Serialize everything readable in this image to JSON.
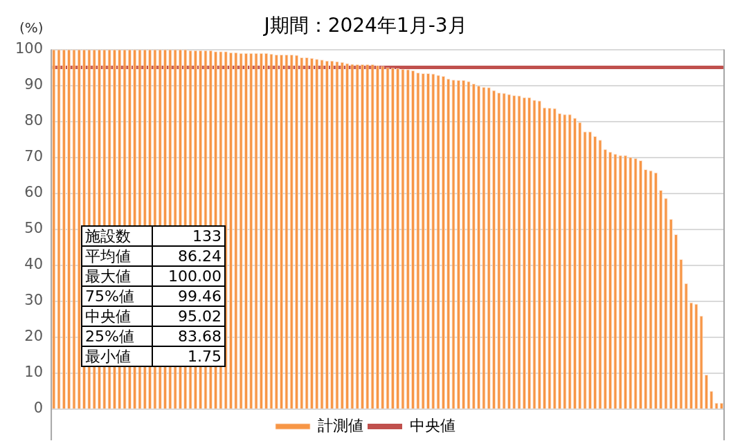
{
  "chart_data": {
    "type": "bar",
    "title": "J期間：2024年1月-3月",
    "ylabel": "(%)",
    "categories": [
      null,
      null,
      null,
      null,
      null,
      null,
      null,
      null,
      null,
      null,
      null,
      null,
      null,
      null,
      null,
      null,
      null,
      null,
      null,
      null,
      null,
      null,
      null,
      null,
      null,
      null,
      null,
      null,
      null,
      null,
      null,
      null,
      null,
      null,
      null,
      null,
      null,
      null,
      null,
      null,
      null,
      null,
      null,
      null,
      null,
      null,
      null,
      null,
      null,
      null,
      null,
      null,
      null,
      null,
      null,
      null,
      null,
      null,
      null,
      null,
      null,
      null,
      null,
      null,
      null,
      null,
      null,
      null,
      null,
      null,
      null,
      null,
      null,
      null,
      null,
      null,
      null,
      null,
      null,
      null,
      null,
      null,
      null,
      null,
      null,
      null,
      null,
      null,
      null,
      null,
      null,
      null,
      null,
      null,
      null,
      null,
      null,
      null,
      null,
      null,
      null,
      null,
      null,
      null,
      null,
      null,
      null,
      null,
      null,
      null,
      null,
      null,
      null,
      null,
      null,
      null,
      null,
      null,
      null,
      null,
      null,
      null,
      null,
      null,
      null,
      null,
      null,
      null,
      null,
      null,
      null,
      null,
      null
    ],
    "series": [
      {
        "name": "計測値",
        "color": "#f79646",
        "values": [
          100,
          100,
          100,
          100,
          100,
          100,
          100,
          100,
          100,
          100,
          100,
          100,
          100,
          100,
          100,
          100,
          100,
          100,
          100,
          100,
          100,
          100,
          100,
          100,
          100,
          100,
          100,
          99.8,
          99.8,
          99.8,
          99.8,
          99.8,
          99.5,
          99.5,
          99.5,
          99.2,
          99.2,
          99.0,
          99.0,
          99.0,
          99.0,
          99.0,
          99.0,
          98.8,
          98.6,
          98.6,
          98.6,
          98.6,
          98.5,
          97.8,
          97.8,
          97.6,
          97.4,
          97.2,
          96.9,
          96.9,
          96.7,
          96.5,
          96.2,
          96.0,
          95.9,
          95.9,
          95.9,
          95.9,
          95.6,
          95.4,
          95.0,
          94.9,
          94.8,
          94.6,
          94.5,
          94.2,
          93.6,
          93.4,
          93.4,
          93.3,
          92.9,
          92.6,
          91.9,
          91.6,
          91.5,
          91.5,
          91.2,
          90.5,
          90.0,
          89.6,
          89.5,
          88.7,
          88.0,
          87.9,
          87.6,
          87.3,
          87.2,
          86.7,
          86.7,
          86.0,
          85.8,
          83.9,
          83.8,
          83.7,
          82.3,
          82.0,
          82.0,
          81.0,
          79.8,
          77.2,
          77.2,
          75.9,
          74.9,
          72.3,
          71.6,
          71.0,
          70.6,
          70.6,
          70.1,
          69.8,
          69.2,
          66.7,
          66.4,
          65.8,
          60.9,
          58.7,
          52.9,
          48.6,
          41.7,
          35.0,
          29.7,
          29.3,
          26.0,
          9.6,
          5.1,
          1.8,
          1.8
        ]
      }
    ],
    "ref_lines": [
      {
        "axis": "y",
        "value": 95.02,
        "label": "中央値",
        "color": "#c0504d"
      }
    ],
    "ylim": [
      0,
      100
    ],
    "yticks": [
      0,
      10,
      20,
      30,
      40,
      50,
      60,
      70,
      80,
      90,
      100
    ],
    "grid": "y",
    "legend": "bottom",
    "annotations": [
      "施設数",
      "133",
      "平均値",
      "86.24",
      "最大値",
      "100.00",
      "75%値",
      "99.46",
      "中央値",
      "95.02",
      "25%値",
      "83.68",
      "最小値",
      "1.75"
    ]
  }
}
